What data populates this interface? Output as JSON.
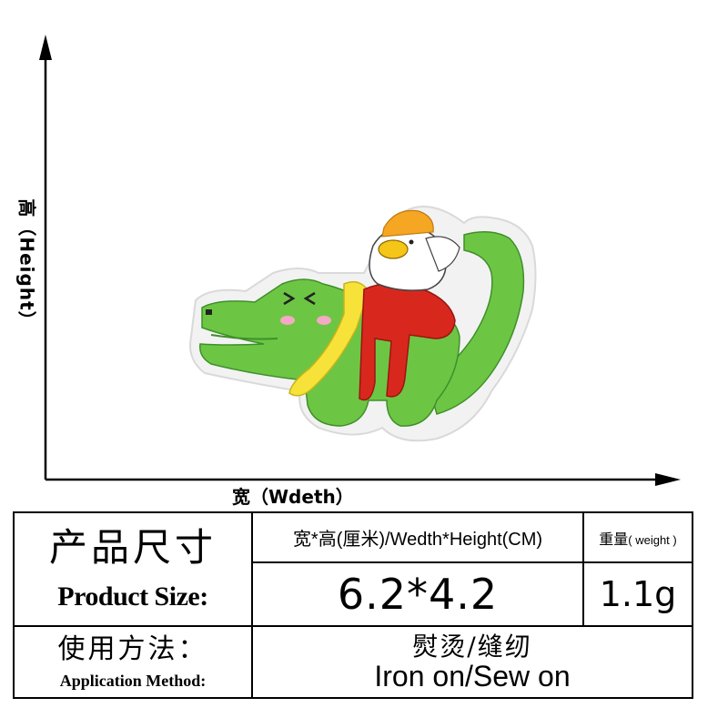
{
  "axes": {
    "height_label": "高（Height）",
    "width_label": "宽（Wdeth）"
  },
  "patch": {
    "colors": {
      "crocodile": "#6cc644",
      "crocodile_dark": "#3f8f2a",
      "border": "#f2f2f2",
      "scarf": "#f7e23a",
      "shirt": "#d8281e",
      "hat": "#f5a623",
      "bird": "#ffffff",
      "cheek": "#f6a9c4"
    }
  },
  "table": {
    "product_size_cn": "产品尺寸",
    "product_size_en": "Product Size:",
    "size_header": "宽*高(厘米)/Wedth*Height(CM)",
    "weight_header_cn": "重量",
    "weight_header_en": "( weight )",
    "size_value": "6.2*4.2",
    "weight_value": "1.1g",
    "method_cn": "使用方法：",
    "method_en": "Application Method:",
    "method_value_cn": "熨烫/缝纫",
    "method_value_en": "Iron on/Sew on"
  }
}
